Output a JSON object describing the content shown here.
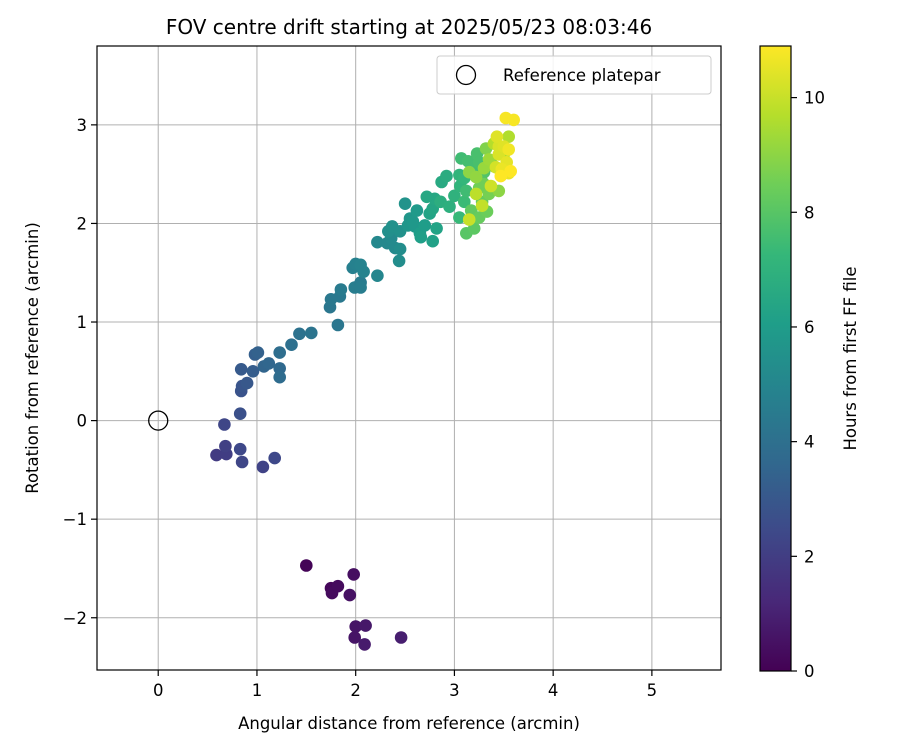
{
  "chart_data": {
    "type": "scatter",
    "title": "FOV centre drift starting at 2025/05/23 08:03:46",
    "xlabel": "Angular distance from reference (arcmin)",
    "ylabel": "Rotation from reference (arcmin)",
    "xlim": [
      -0.62,
      5.7
    ],
    "ylim": [
      -2.53,
      3.8
    ],
    "xticks": [
      0,
      1,
      2,
      3,
      4,
      5
    ],
    "yticks": [
      -2,
      -1,
      0,
      1,
      2,
      3
    ],
    "xtick_labels": [
      "0",
      "1",
      "2",
      "3",
      "4",
      "5"
    ],
    "ytick_labels": [
      "−2",
      "−1",
      "0",
      "1",
      "2",
      "3"
    ],
    "grid": true,
    "legend": {
      "position": "top-right",
      "entries": [
        "Reference platepar"
      ]
    },
    "reference_point": {
      "name": "Reference platepar",
      "x": 0.0,
      "y": 0.0,
      "marker": "open circle"
    },
    "colorbar": {
      "label": "Hours from first FF file",
      "range": [
        0,
        10.9
      ],
      "ticks": [
        0,
        2,
        4,
        6,
        8,
        10
      ],
      "colormap": "viridis",
      "colormap_stops": [
        "#440154",
        "#482878",
        "#3e4989",
        "#31688e",
        "#26828e",
        "#1f9e89",
        "#35b779",
        "#6ece58",
        "#b5de2b",
        "#fde725"
      ]
    },
    "points_encoding": [
      "x",
      "y",
      "hours"
    ],
    "points": [
      [
        1.5,
        -1.47,
        0.1
      ],
      [
        1.75,
        -1.7,
        0.2
      ],
      [
        1.76,
        -1.75,
        0.3
      ],
      [
        1.82,
        -1.68,
        0.3
      ],
      [
        1.98,
        -1.56,
        0.4
      ],
      [
        1.94,
        -1.77,
        0.5
      ],
      [
        2.0,
        -2.09,
        0.6
      ],
      [
        1.99,
        -2.2,
        0.6
      ],
      [
        2.1,
        -2.08,
        0.7
      ],
      [
        2.09,
        -2.27,
        0.8
      ],
      [
        2.46,
        -2.2,
        0.9
      ],
      [
        0.59,
        -0.35,
        1.9
      ],
      [
        0.69,
        -0.34,
        2.0
      ],
      [
        0.68,
        -0.26,
        2.1
      ],
      [
        0.67,
        -0.04,
        2.3
      ],
      [
        0.83,
        -0.29,
        2.4
      ],
      [
        0.85,
        -0.42,
        2.3
      ],
      [
        1.06,
        -0.47,
        2.2
      ],
      [
        1.18,
        -0.38,
        2.4
      ],
      [
        0.83,
        0.07,
        2.7
      ],
      [
        0.84,
        0.3,
        2.8
      ],
      [
        0.85,
        0.35,
        2.9
      ],
      [
        0.9,
        0.38,
        3.0
      ],
      [
        0.84,
        0.52,
        3.1
      ],
      [
        0.96,
        0.5,
        3.2
      ],
      [
        0.98,
        0.67,
        3.3
      ],
      [
        1.01,
        0.69,
        3.4
      ],
      [
        1.07,
        0.55,
        3.5
      ],
      [
        1.12,
        0.58,
        3.6
      ],
      [
        1.23,
        0.53,
        3.7
      ],
      [
        1.23,
        0.44,
        3.8
      ],
      [
        1.23,
        0.69,
        3.9
      ],
      [
        1.35,
        0.77,
        4.0
      ],
      [
        1.43,
        0.88,
        4.1
      ],
      [
        1.55,
        0.89,
        4.2
      ],
      [
        1.82,
        0.97,
        4.3
      ],
      [
        1.74,
        1.15,
        4.3
      ],
      [
        1.75,
        1.23,
        4.4
      ],
      [
        1.84,
        1.26,
        4.4
      ],
      [
        1.85,
        1.33,
        4.5
      ],
      [
        1.99,
        1.35,
        4.6
      ],
      [
        2.05,
        1.4,
        4.5
      ],
      [
        2.05,
        1.35,
        4.6
      ],
      [
        1.97,
        1.55,
        4.7
      ],
      [
        2.0,
        1.59,
        4.8
      ],
      [
        2.05,
        1.58,
        4.9
      ],
      [
        2.08,
        1.51,
        4.9
      ],
      [
        2.22,
        1.47,
        5.0
      ],
      [
        2.22,
        1.81,
        5.1
      ],
      [
        2.32,
        1.8,
        5.1
      ],
      [
        2.36,
        1.85,
        5.2
      ],
      [
        2.4,
        1.75,
        5.2
      ],
      [
        2.45,
        1.74,
        5.3
      ],
      [
        2.44,
        1.62,
        5.3
      ],
      [
        2.33,
        1.92,
        5.4
      ],
      [
        2.37,
        1.97,
        5.5
      ],
      [
        2.45,
        1.92,
        5.5
      ],
      [
        2.5,
        2.2,
        5.6
      ],
      [
        2.55,
        2.05,
        5.7
      ],
      [
        2.53,
        1.98,
        5.7
      ],
      [
        2.6,
        1.97,
        5.8
      ],
      [
        2.58,
        2.02,
        5.8
      ],
      [
        2.62,
        2.13,
        5.9
      ],
      [
        2.65,
        1.9,
        6.0
      ],
      [
        2.7,
        1.98,
        6.0
      ],
      [
        2.66,
        1.86,
        6.1
      ],
      [
        2.78,
        1.82,
        6.2
      ],
      [
        2.82,
        1.95,
        6.3
      ],
      [
        2.75,
        2.1,
        6.3
      ],
      [
        2.78,
        2.15,
        6.4
      ],
      [
        2.8,
        2.25,
        6.5
      ],
      [
        2.72,
        2.27,
        6.5
      ],
      [
        2.87,
        2.42,
        6.6
      ],
      [
        2.92,
        2.48,
        6.7
      ],
      [
        2.86,
        2.22,
        6.8
      ],
      [
        2.95,
        2.17,
        6.9
      ],
      [
        3.0,
        2.28,
        7.0
      ],
      [
        3.06,
        2.38,
        7.1
      ],
      [
        3.05,
        2.49,
        7.1
      ],
      [
        3.1,
        2.46,
        7.2
      ],
      [
        3.05,
        2.06,
        7.3
      ],
      [
        3.1,
        2.22,
        7.4
      ],
      [
        3.12,
        2.33,
        7.5
      ],
      [
        3.07,
        2.66,
        7.5
      ],
      [
        3.14,
        2.63,
        7.6
      ],
      [
        3.2,
        2.58,
        7.6
      ],
      [
        3.23,
        2.71,
        7.7
      ],
      [
        3.25,
        2.62,
        7.7
      ],
      [
        3.27,
        2.45,
        7.8
      ],
      [
        3.3,
        2.52,
        7.9
      ],
      [
        3.12,
        1.9,
        8.0
      ],
      [
        3.2,
        1.95,
        8.1
      ],
      [
        3.17,
        2.13,
        8.2
      ],
      [
        3.25,
        2.06,
        8.3
      ],
      [
        3.28,
        2.22,
        8.3
      ],
      [
        3.33,
        2.12,
        8.4
      ],
      [
        3.3,
        2.4,
        8.5
      ],
      [
        3.25,
        2.36,
        8.5
      ],
      [
        3.35,
        2.3,
        8.6
      ],
      [
        3.4,
        2.58,
        8.7
      ],
      [
        3.32,
        2.76,
        8.8
      ],
      [
        3.38,
        2.6,
        8.9
      ],
      [
        3.45,
        2.33,
        9.0
      ],
      [
        3.15,
        2.52,
        9.0
      ],
      [
        3.22,
        2.47,
        9.1
      ],
      [
        3.3,
        2.56,
        9.2
      ],
      [
        3.35,
        2.65,
        9.3
      ],
      [
        3.48,
        2.55,
        9.4
      ],
      [
        3.5,
        2.7,
        9.5
      ],
      [
        3.55,
        2.88,
        9.6
      ],
      [
        3.4,
        2.81,
        9.7
      ],
      [
        3.22,
        2.3,
        9.8
      ],
      [
        3.28,
        2.18,
        9.9
      ],
      [
        3.15,
        2.04,
        10.0
      ],
      [
        3.37,
        2.38,
        10.1
      ],
      [
        3.42,
        2.57,
        10.2
      ],
      [
        3.45,
        2.7,
        10.3
      ],
      [
        3.45,
        2.78,
        10.3
      ],
      [
        3.43,
        2.88,
        10.4
      ],
      [
        3.5,
        2.78,
        10.4
      ],
      [
        3.53,
        2.62,
        10.5
      ],
      [
        3.55,
        2.51,
        10.6
      ],
      [
        3.48,
        2.55,
        10.6
      ],
      [
        3.55,
        2.75,
        10.7
      ],
      [
        3.52,
        3.07,
        10.8
      ],
      [
        3.6,
        3.05,
        10.8
      ],
      [
        3.57,
        2.53,
        10.9
      ],
      [
        3.47,
        2.48,
        10.9
      ]
    ]
  }
}
